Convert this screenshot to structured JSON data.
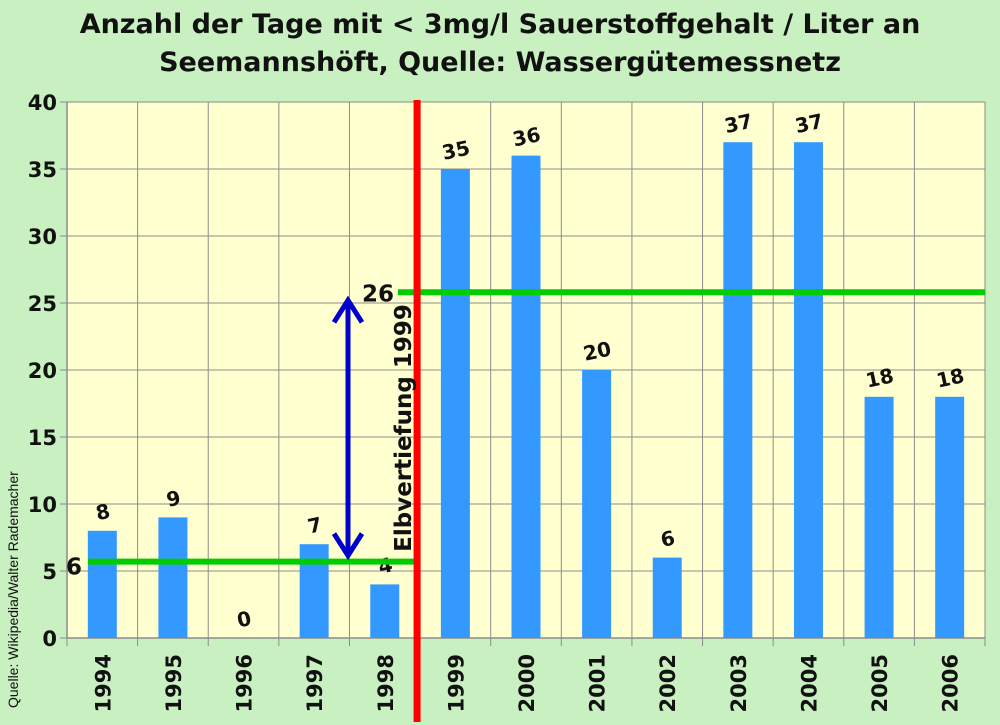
{
  "title": {
    "line1": "Anzahl der Tage mit < 3mg/l Sauerstoffgehalt / Liter an",
    "line2": "Seemannshöft, Quelle: Wassergütemessnetz"
  },
  "credit": "Quelle: Wikipedia/Walter Rademacher",
  "chart_data": {
    "type": "bar",
    "categories": [
      "1994",
      "1995",
      "1996",
      "1997",
      "1998",
      "1999",
      "2000",
      "2001",
      "2002",
      "2003",
      "2004",
      "2005",
      "2006"
    ],
    "values": [
      8,
      9,
      0,
      7,
      4,
      35,
      36,
      20,
      6,
      37,
      37,
      18,
      18
    ],
    "ylim": [
      0,
      40
    ],
    "yticks": [
      0,
      5,
      10,
      15,
      20,
      25,
      30,
      35,
      40
    ],
    "grid": true,
    "bar_color": "#3399ff",
    "plot_background": "#ffffd0",
    "annotations": {
      "event_line": {
        "category": "1999",
        "label": "Elbvertiefung 1999",
        "color": "#ff0000"
      },
      "mean_before": {
        "value": 5.7,
        "label": "6",
        "color": "#00cc00"
      },
      "mean_after": {
        "value": 25.8,
        "label": "26",
        "color": "#00cc00"
      },
      "difference_arrow_color": "#0000cc"
    }
  }
}
